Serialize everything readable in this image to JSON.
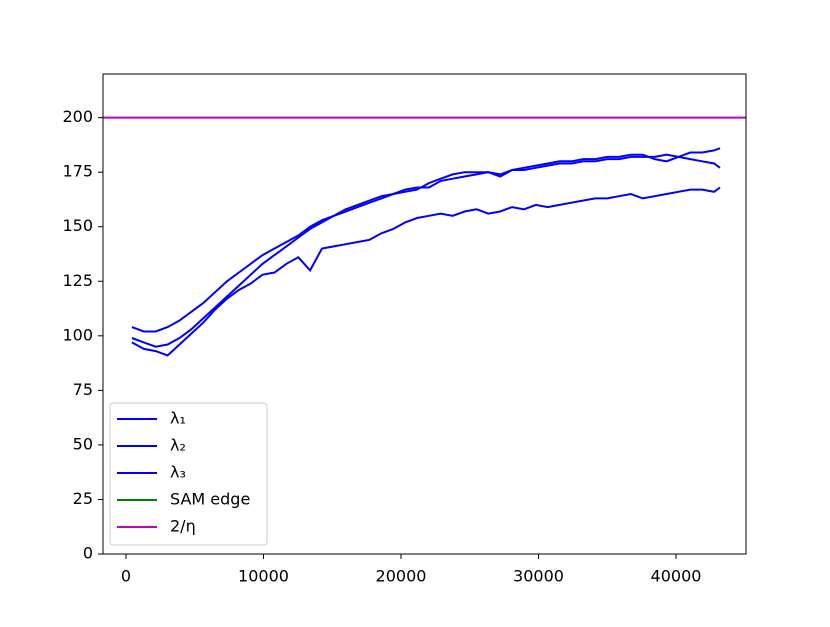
{
  "chart_data": {
    "type": "line",
    "x": [
      432,
      1296,
      2160,
      3024,
      3888,
      4752,
      5616,
      6480,
      7344,
      8208,
      9072,
      9936,
      10800,
      11664,
      12528,
      13392,
      14256,
      15120,
      15984,
      16848,
      17712,
      18576,
      19440,
      20304,
      21168,
      22032,
      22896,
      23760,
      24624,
      25488,
      26352,
      27216,
      28080,
      28944,
      29808,
      30672,
      31536,
      32400,
      33264,
      34128,
      34992,
      35856,
      36720,
      37584,
      38448,
      39312,
      40176,
      41040,
      41904,
      42768,
      43200
    ],
    "series": [
      {
        "name": "λ₁",
        "color": "#0000ff",
        "values": [
          104,
          102,
          102,
          104,
          107,
          111,
          115,
          120,
          125,
          129,
          133,
          137,
          140,
          143,
          146,
          150,
          153,
          155,
          157,
          159,
          161,
          163,
          165,
          167,
          168,
          168,
          171,
          172,
          173,
          174,
          175,
          174,
          176,
          176,
          177,
          178,
          179,
          179,
          180,
          180,
          181,
          181,
          182,
          182,
          182,
          183,
          182,
          184,
          184,
          185,
          186
        ]
      },
      {
        "name": "λ₂",
        "color": "#0000ff",
        "values": [
          99,
          97,
          95,
          96,
          99,
          103,
          108,
          113,
          118,
          123,
          128,
          133,
          137,
          141,
          145,
          149,
          152,
          155,
          158,
          160,
          162,
          164,
          165,
          166,
          167,
          170,
          172,
          174,
          175,
          175,
          175,
          173,
          176,
          177,
          178,
          179,
          180,
          180,
          181,
          181,
          182,
          182,
          183,
          183,
          181,
          180,
          182,
          181,
          180,
          179,
          177
        ]
      },
      {
        "name": "λ₃",
        "color": "#0000ff",
        "values": [
          97,
          94,
          93,
          91,
          96,
          101,
          106,
          112,
          117,
          121,
          124,
          128,
          129,
          133,
          136,
          130,
          140,
          141,
          142,
          143,
          144,
          147,
          149,
          152,
          154,
          155,
          156,
          155,
          157,
          158,
          156,
          157,
          159,
          158,
          160,
          159,
          160,
          161,
          162,
          163,
          163,
          164,
          165,
          163,
          164,
          165,
          166,
          167,
          167,
          166,
          168
        ]
      },
      {
        "name": "SAM edge",
        "color": "#008000"
      }
    ],
    "hlines": [
      {
        "name": "2/η",
        "color": "#bf00bf",
        "value": 200
      }
    ],
    "xlim": [
      -1673,
      45090
    ],
    "ylim": [
      0,
      220
    ],
    "xticks": [
      0,
      10000,
      20000,
      30000,
      40000
    ],
    "yticks": [
      0,
      25,
      50,
      75,
      100,
      125,
      150,
      175,
      200
    ],
    "grid": false,
    "legend": "lower left"
  }
}
